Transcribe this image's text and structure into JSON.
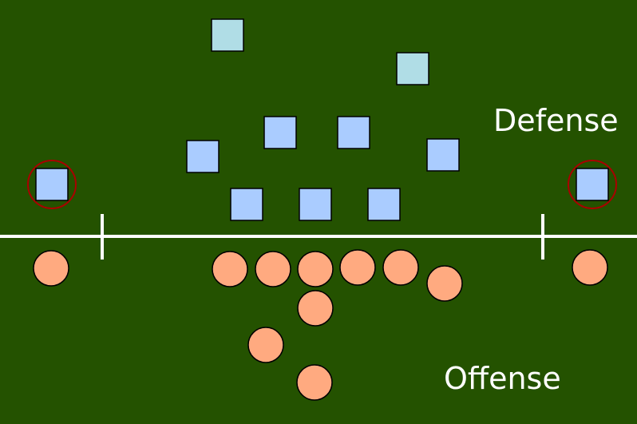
{
  "labels": {
    "defense": "Defense",
    "offense": "Offense"
  },
  "colors": {
    "field": "#245200",
    "line": "#ffffff",
    "defender_fill": "#aaccff",
    "deep_defender_fill": "#b0dde6",
    "defender_stroke": "#000000",
    "offense_fill": "#ffaa80",
    "offense_stroke": "#000000",
    "highlight_ring": "#aa0000"
  }
}
